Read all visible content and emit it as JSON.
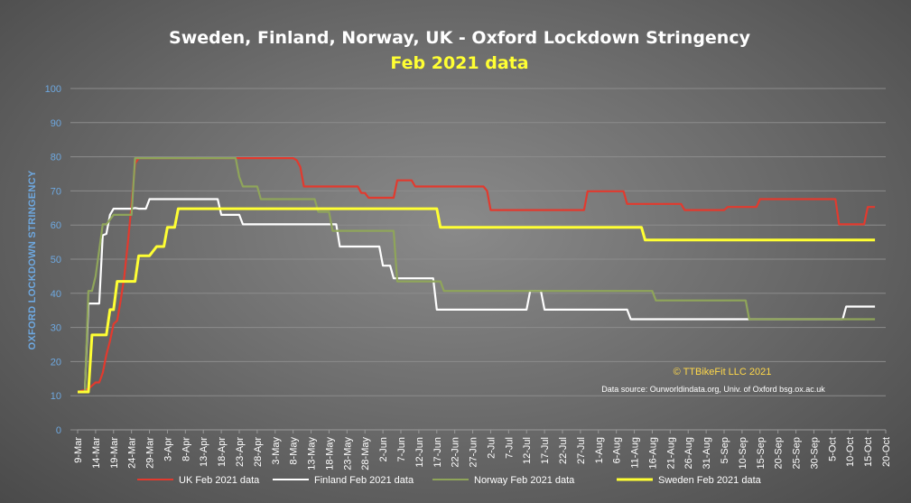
{
  "chart_data": {
    "type": "line",
    "title": "Sweden, Finland,  Norway, UK -  Oxford Lockdown Stringency",
    "subtitle": "Feb 2021 data",
    "ylabel": "OXFORD LOCKDOWN STRINGENCY",
    "xlabel": "",
    "ylim": [
      0,
      100
    ],
    "yticks": [
      "0",
      "10",
      "20",
      "30",
      "40",
      "50",
      "60",
      "70",
      "80",
      "90",
      "100"
    ],
    "x_start_day": 0,
    "x_end_day": 225,
    "xtick_labels": [
      "9-Mar",
      "14-Mar",
      "19-Mar",
      "24-Mar",
      "29-Mar",
      "3-Apr",
      "8-Apr",
      "13-Apr",
      "18-Apr",
      "23-Apr",
      "28-Apr",
      "3-May",
      "8-May",
      "13-May",
      "18-May",
      "23-May",
      "28-May",
      "2-Jun",
      "7-Jun",
      "12-Jun",
      "17-Jun",
      "22-Jun",
      "27-Jun",
      "2-Jul",
      "7-Jul",
      "12-Jul",
      "17-Jul",
      "22-Jul",
      "27-Jul",
      "1-Aug",
      "6-Aug",
      "11-Aug",
      "16-Aug",
      "21-Aug",
      "26-Aug",
      "31-Aug",
      "5-Sep",
      "10-Sep",
      "15-Sep",
      "20-Sep",
      "25-Sep",
      "30-Sep",
      "5-Oct",
      "10-Oct",
      "15-Oct",
      "20-Oct"
    ],
    "grid": true,
    "legend_position": "bottom",
    "annotations": {
      "copyright": "© TTBikeFit LLC 2021",
      "source": "Data source: Ourworldindata.org, Univ. of Oxford bsg.ox.ac.uk"
    },
    "series": [
      {
        "name": "UK Feb 2021 data",
        "color": "#e23a2e",
        "points": [
          [
            0,
            11.1
          ],
          [
            3,
            12
          ],
          [
            5,
            13.9
          ],
          [
            6,
            13.9
          ],
          [
            7,
            16.7
          ],
          [
            8,
            22
          ],
          [
            9,
            26
          ],
          [
            10,
            31
          ],
          [
            11,
            32
          ],
          [
            12,
            38
          ],
          [
            13,
            45
          ],
          [
            14,
            55
          ],
          [
            15,
            66
          ],
          [
            16,
            78
          ],
          [
            17,
            79.6
          ],
          [
            40,
            79.6
          ],
          [
            60,
            79.6
          ],
          [
            61,
            79
          ],
          [
            62,
            77
          ],
          [
            63,
            71.3
          ],
          [
            78,
            71.3
          ],
          [
            79,
            69.4
          ],
          [
            80,
            69.4
          ],
          [
            81,
            68
          ],
          [
            88,
            68
          ],
          [
            89,
            73.1
          ],
          [
            93,
            73.1
          ],
          [
            94,
            71.3
          ],
          [
            113,
            71.3
          ],
          [
            114,
            70
          ],
          [
            115,
            64.4
          ],
          [
            141,
            64.4
          ],
          [
            142,
            69.9
          ],
          [
            152,
            69.9
          ],
          [
            153,
            66.2
          ],
          [
            168,
            66.2
          ],
          [
            169,
            64.4
          ],
          [
            180,
            64.4
          ],
          [
            181,
            65.3
          ],
          [
            189,
            65.3
          ],
          [
            190,
            67.6
          ],
          [
            211,
            67.6
          ],
          [
            212,
            60.2
          ],
          [
            219,
            60.2
          ],
          [
            220,
            65.3
          ],
          [
            222,
            65.3
          ]
        ]
      },
      {
        "name": "Finland Feb 2021 data",
        "color": "#ffffff",
        "points": [
          [
            0,
            11.1
          ],
          [
            2,
            11.1
          ],
          [
            3,
            37
          ],
          [
            6,
            37
          ],
          [
            7,
            57
          ],
          [
            8,
            57.4
          ],
          [
            9,
            63
          ],
          [
            10,
            64.8
          ],
          [
            15,
            64.8
          ],
          [
            16,
            65
          ],
          [
            17,
            64.8
          ],
          [
            19,
            64.8
          ],
          [
            20,
            67.6
          ],
          [
            39,
            67.6
          ],
          [
            40,
            63
          ],
          [
            45,
            63
          ],
          [
            46,
            60.2
          ],
          [
            72,
            60.2
          ],
          [
            73,
            53.7
          ],
          [
            84,
            53.7
          ],
          [
            85,
            48.1
          ],
          [
            87,
            48.1
          ],
          [
            88,
            44.4
          ],
          [
            99,
            44.4
          ],
          [
            100,
            35.2
          ],
          [
            125,
            35.2
          ],
          [
            126,
            40.7
          ],
          [
            129,
            40.7
          ],
          [
            130,
            35.2
          ],
          [
            153,
            35.2
          ],
          [
            154,
            32.4
          ],
          [
            213,
            32.4
          ],
          [
            214,
            36.1
          ],
          [
            222,
            36.1
          ]
        ]
      },
      {
        "name": "Norway Feb 2021 data",
        "color": "#8fa55a",
        "points": [
          [
            0,
            11.1
          ],
          [
            2,
            11.1
          ],
          [
            3,
            40.7
          ],
          [
            4,
            40.7
          ],
          [
            5,
            45
          ],
          [
            7,
            60.2
          ],
          [
            8,
            60.2
          ],
          [
            10,
            63
          ],
          [
            15,
            63
          ],
          [
            16,
            79.6
          ],
          [
            44,
            79.6
          ],
          [
            45,
            74.1
          ],
          [
            46,
            71.3
          ],
          [
            50,
            71.3
          ],
          [
            51,
            67.6
          ],
          [
            66,
            67.6
          ],
          [
            67,
            63.9
          ],
          [
            70,
            63.9
          ],
          [
            71,
            58.3
          ],
          [
            88,
            58.3
          ],
          [
            89,
            43.5
          ],
          [
            101,
            43.5
          ],
          [
            102,
            40.7
          ],
          [
            160,
            40.7
          ],
          [
            161,
            37.9
          ],
          [
            186,
            37.9
          ],
          [
            187,
            32.4
          ],
          [
            222,
            32.4
          ]
        ]
      },
      {
        "name": "Sweden Feb 2021 data",
        "color": "#ffff33",
        "points": [
          [
            0,
            11.1
          ],
          [
            3,
            11.1
          ],
          [
            4,
            27.8
          ],
          [
            8,
            27.8
          ],
          [
            9,
            35.2
          ],
          [
            10,
            35.2
          ],
          [
            11,
            43.5
          ],
          [
            16,
            43.5
          ],
          [
            17,
            51
          ],
          [
            19,
            51
          ],
          [
            20,
            51
          ],
          [
            22,
            53.7
          ],
          [
            24,
            53.7
          ],
          [
            25,
            59.3
          ],
          [
            27,
            59.3
          ],
          [
            28,
            64.8
          ],
          [
            100,
            64.8
          ],
          [
            101,
            59.3
          ],
          [
            157,
            59.3
          ],
          [
            158,
            55.6
          ],
          [
            222,
            55.6
          ]
        ]
      }
    ]
  }
}
